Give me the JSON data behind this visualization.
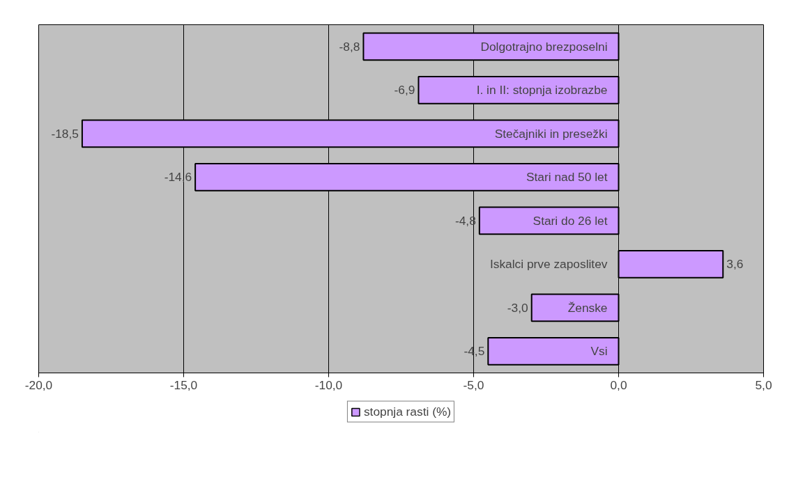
{
  "chart_data": {
    "type": "bar",
    "orientation": "horizontal",
    "categories": [
      "Dolgotrajno brezposelni",
      "I. in II: stopnja izobrazbe",
      "Stečajniki in presežki",
      "Stari nad 50 let",
      "Stari do 26 let",
      "Iskalci prve zaposlitev",
      "Ženske",
      "Vsi"
    ],
    "series": [
      {
        "name": "stopnja rasti (%)",
        "color": "#cc99ff",
        "values": [
          -8.8,
          -6.9,
          -18.5,
          -14.6,
          -4.8,
          3.6,
          -3.0,
          -4.5
        ],
        "value_labels": [
          "-8,8",
          "-6,9",
          "-18,5",
          "-14,6",
          "-4,8",
          "3,6",
          "-3,0",
          "-4,5"
        ]
      }
    ],
    "xlim": [
      -20,
      5
    ],
    "xticks": [
      {
        "value": -20,
        "label": "-20,0"
      },
      {
        "value": -15,
        "label": "-15,0"
      },
      {
        "value": -10,
        "label": "-10,0"
      },
      {
        "value": -5,
        "label": "-5,0"
      },
      {
        "value": 0,
        "label": "0,0"
      },
      {
        "value": 5,
        "label": "5,0"
      }
    ],
    "grid": "x",
    "legend": "bottom"
  }
}
